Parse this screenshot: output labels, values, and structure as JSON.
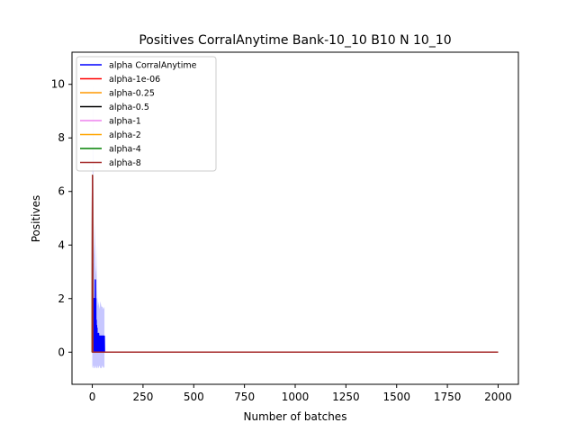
{
  "chart_data": {
    "type": "line",
    "title": "Positives CorralAnytime Bank-10_10 B10 N 10_10",
    "xlabel": "Number of batches",
    "ylabel": "Positives",
    "xlim": [
      -100,
      2100
    ],
    "ylim": [
      -1.2,
      11.2
    ],
    "grid": false,
    "legend_position": "top-left",
    "x_ticks": [
      0,
      250,
      500,
      750,
      1000,
      1250,
      1500,
      1750,
      2000
    ],
    "x_tick_labels": [
      "0",
      "250",
      "500",
      "750",
      "1000",
      "1250",
      "1500",
      "1750",
      "2000"
    ],
    "y_ticks": [
      0,
      2,
      4,
      6,
      8,
      10
    ],
    "y_tick_labels": [
      "0",
      "2",
      "4",
      "6",
      "8",
      "10"
    ],
    "band": {
      "series": "alpha CorralAnytime",
      "color": "#0000ff",
      "opacity": 0.22,
      "x": [
        0,
        3,
        5,
        8,
        10,
        13,
        15,
        18,
        20,
        23,
        25,
        28,
        30,
        35,
        40,
        45,
        50,
        55,
        60
      ],
      "upper": [
        3.5,
        10.1,
        6.2,
        4.1,
        3.6,
        4.8,
        3.2,
        2.9,
        4.0,
        2.4,
        2.0,
        1.7,
        1.9,
        1.6,
        1.9,
        1.7,
        1.7,
        1.6,
        1.7
      ],
      "lower": [
        -0.6,
        -0.5,
        -0.6,
        -0.6,
        -0.5,
        -0.6,
        -0.6,
        -0.5,
        -0.6,
        -0.6,
        -0.5,
        -0.6,
        -0.6,
        -0.5,
        -0.6,
        -0.6,
        -0.5,
        -0.6,
        -0.55
      ]
    },
    "series": [
      {
        "name": "alpha CorralAnytime",
        "color": "#0000ff",
        "x": [
          0,
          1,
          2,
          3,
          4,
          5,
          6,
          7,
          8,
          9,
          10,
          11,
          12,
          13,
          14,
          15,
          16,
          17,
          18,
          19,
          20,
          21,
          22,
          23,
          24,
          25,
          26,
          27,
          28,
          29,
          30,
          31,
          32,
          33,
          34,
          35,
          36,
          37,
          38,
          39,
          40,
          41,
          42,
          43,
          44,
          45,
          46,
          47,
          48,
          49,
          50,
          51,
          52,
          53,
          54,
          55,
          56,
          57,
          58,
          59,
          60,
          2000
        ],
        "y": [
          0.5,
          6.6,
          0.2,
          3.3,
          0.4,
          1.5,
          0.1,
          2.0,
          0.3,
          1.2,
          0,
          2.0,
          0,
          1.6,
          0,
          2.7,
          0,
          2.0,
          0,
          1.2,
          0,
          1.0,
          0,
          0.9,
          0,
          0.7,
          0,
          0.6,
          0,
          0.6,
          0,
          0.7,
          0,
          0.6,
          0,
          0.6,
          0,
          0.6,
          0,
          0.6,
          0,
          0.6,
          0,
          0.6,
          0,
          0.6,
          0,
          0.6,
          0,
          0.6,
          0,
          0.6,
          0,
          0.6,
          0,
          0.6,
          0,
          0.6,
          0,
          0.6,
          0,
          0
        ]
      },
      {
        "name": "alpha-1e-06",
        "color": "#ff0000",
        "x": [
          0,
          1,
          2,
          3,
          4,
          2000
        ],
        "y": [
          0,
          6.6,
          0,
          0,
          0,
          0
        ]
      },
      {
        "name": "alpha-0.25",
        "color": "#ff9900",
        "x": [
          0,
          1,
          2,
          3,
          4,
          2000
        ],
        "y": [
          0,
          6.6,
          0,
          0,
          0,
          0
        ]
      },
      {
        "name": "alpha-0.5",
        "color": "#000000",
        "x": [
          0,
          1,
          2,
          3,
          4,
          2000
        ],
        "y": [
          0,
          6.6,
          0,
          0,
          0,
          0
        ]
      },
      {
        "name": "alpha-1",
        "color": "#ee82ee",
        "x": [
          0,
          1,
          2,
          3,
          4,
          2000
        ],
        "y": [
          0,
          6.6,
          0,
          0,
          0,
          0
        ]
      },
      {
        "name": "alpha-2",
        "color": "#ffa500",
        "x": [
          0,
          1,
          2,
          3,
          4,
          2000
        ],
        "y": [
          0,
          6.6,
          0,
          0,
          0,
          0
        ]
      },
      {
        "name": "alpha-4",
        "color": "#008000",
        "x": [
          0,
          1,
          2,
          3,
          4,
          2000
        ],
        "y": [
          0,
          6.6,
          0,
          0,
          0,
          0
        ]
      },
      {
        "name": "alpha-8",
        "color": "#a52a2a",
        "x": [
          0,
          1,
          2,
          3,
          4,
          2000
        ],
        "y": [
          0,
          6.6,
          0,
          0,
          0,
          0
        ]
      }
    ]
  }
}
